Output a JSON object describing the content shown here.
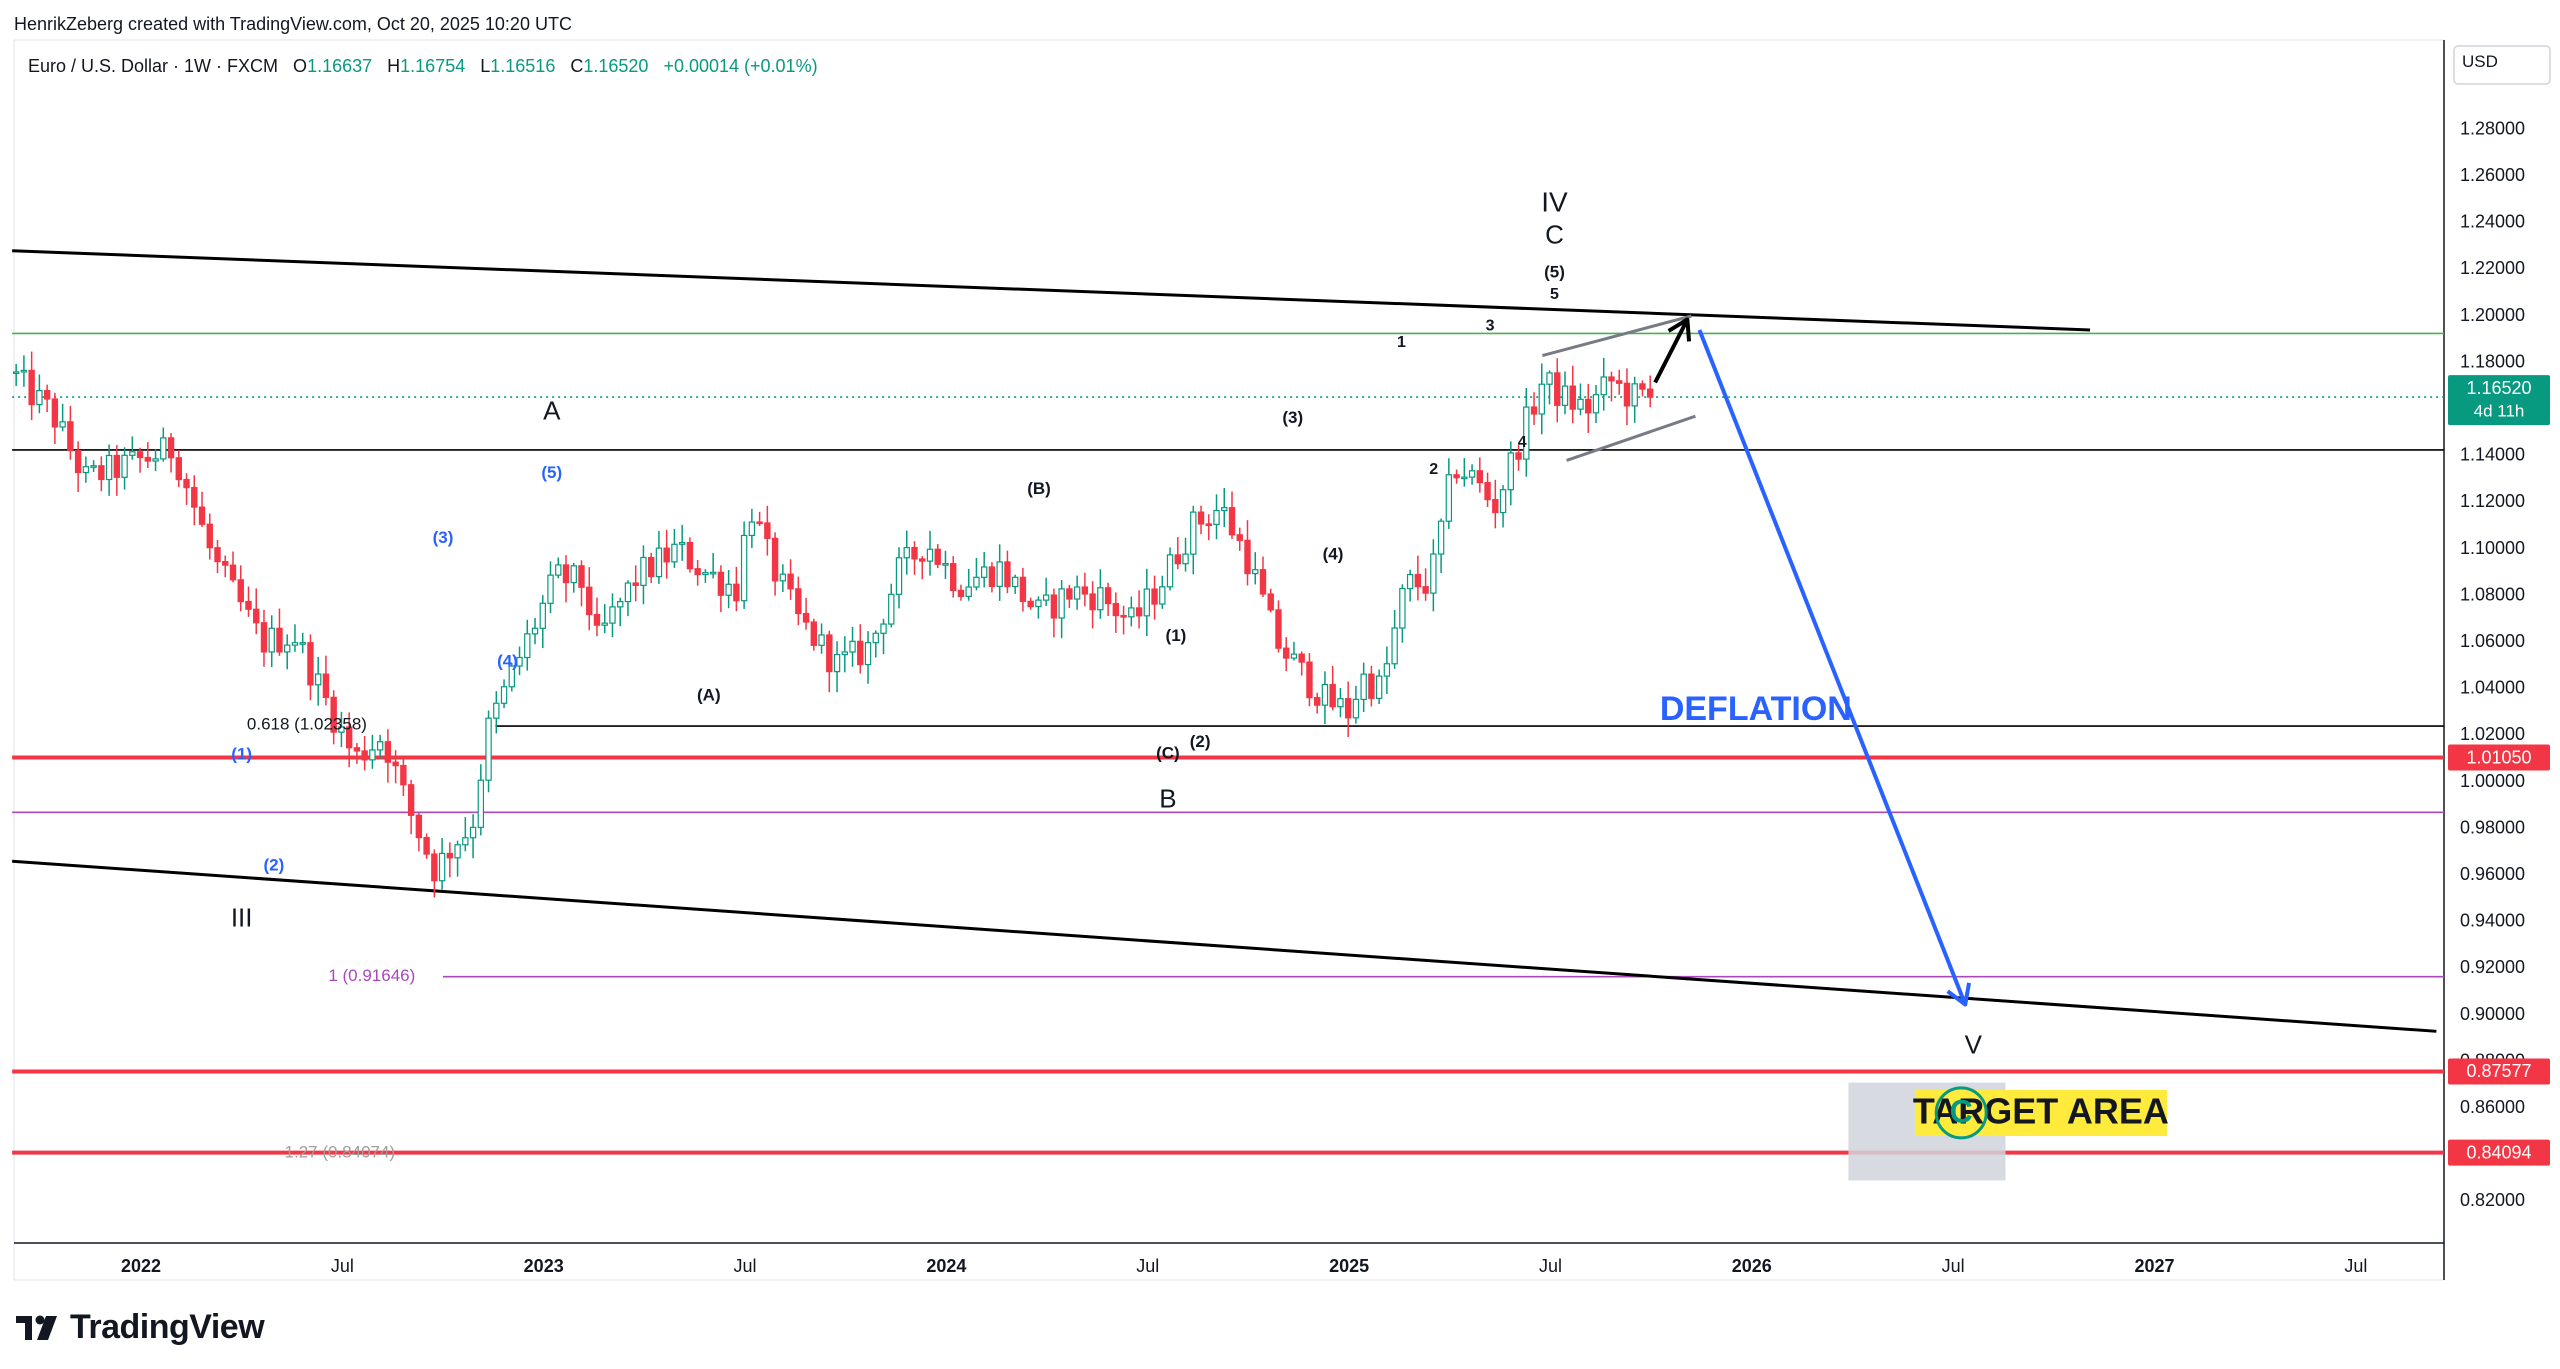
{
  "header": {
    "credit": "HenrikZeberg created with TradingView.com, Oct 20, 2025 10:20 UTC"
  },
  "legend": {
    "symbol": "Euro / U.S. Dollar · 1W · FXCM",
    "o_label": "O",
    "o": "1.16637",
    "h_label": "H",
    "h": "1.16754",
    "l_label": "L",
    "l": "1.16516",
    "c_label": "C",
    "c": "1.16520",
    "change": "+0.00014 (+0.01%)"
  },
  "price_axis": {
    "currency": "USD",
    "ticks": [
      "1.28000",
      "1.26000",
      "1.24000",
      "1.22000",
      "1.20000",
      "1.18000",
      "1.16000",
      "1.14000",
      "1.12000",
      "1.10000",
      "1.08000",
      "1.06000",
      "1.04000",
      "1.02000",
      "1.00000",
      "0.98000",
      "0.96000",
      "0.94000",
      "0.92000",
      "0.90000",
      "0.88000",
      "0.86000",
      "0.84000",
      "0.82000"
    ],
    "tick_values": [
      1.28,
      1.26,
      1.24,
      1.22,
      1.2,
      1.18,
      1.16,
      1.14,
      1.12,
      1.1,
      1.08,
      1.06,
      1.04,
      1.02,
      1.0,
      0.98,
      0.96,
      0.94,
      0.92,
      0.9,
      0.88,
      0.86,
      0.84,
      0.82
    ],
    "current_price_label": "1.16520",
    "countdown_label": "4d 11h",
    "badges": [
      {
        "label": "1.01050",
        "value": 1.0105
      },
      {
        "label": "0.87577",
        "value": 0.87577
      },
      {
        "label": "0.84094",
        "value": 0.84094
      }
    ]
  },
  "time_axis": {
    "labels": [
      {
        "text": "2022",
        "t": 2022.0,
        "bold": true
      },
      {
        "text": "Jul",
        "t": 2022.5,
        "bold": false
      },
      {
        "text": "2023",
        "t": 2023.0,
        "bold": true
      },
      {
        "text": "Jul",
        "t": 2023.5,
        "bold": false
      },
      {
        "text": "2024",
        "t": 2024.0,
        "bold": true
      },
      {
        "text": "Jul",
        "t": 2024.5,
        "bold": false
      },
      {
        "text": "2025",
        "t": 2025.0,
        "bold": true
      },
      {
        "text": "Jul",
        "t": 2025.5,
        "bold": false
      },
      {
        "text": "2026",
        "t": 2026.0,
        "bold": true
      },
      {
        "text": "Jul",
        "t": 2026.5,
        "bold": false
      },
      {
        "text": "2027",
        "t": 2027.0,
        "bold": true
      },
      {
        "text": "Jul",
        "t": 2027.5,
        "bold": false
      }
    ]
  },
  "chart_data": {
    "type": "candlestick",
    "symbol": "EURUSD",
    "interval": "1W",
    "x_range": [
      2021.68,
      2027.7
    ],
    "y_range": [
      0.805,
      1.305
    ],
    "up_color": "#089981",
    "down_color": "#f23645",
    "key_points": [
      {
        "t": 2021.69,
        "v": 1.176
      },
      {
        "t": 2021.8,
        "v": 1.158
      },
      {
        "t": 2021.88,
        "v": 1.13
      },
      {
        "t": 2022.0,
        "v": 1.137
      },
      {
        "t": 2022.1,
        "v": 1.143
      },
      {
        "t": 2022.2,
        "v": 1.095
      },
      {
        "t": 2022.32,
        "v": 1.06
      },
      {
        "t": 2022.4,
        "v": 1.063
      },
      {
        "t": 2022.45,
        "v": 1.045
      },
      {
        "t": 2022.55,
        "v": 1.01
      },
      {
        "t": 2022.62,
        "v": 1.02
      },
      {
        "t": 2022.68,
        "v": 0.99
      },
      {
        "t": 2022.75,
        "v": 0.962
      },
      {
        "t": 2022.8,
        "v": 0.975
      },
      {
        "t": 2022.84,
        "v": 0.98
      },
      {
        "t": 2022.88,
        "v": 1.022
      },
      {
        "t": 2022.95,
        "v": 1.05
      },
      {
        "t": 2023.05,
        "v": 1.088
      },
      {
        "t": 2023.12,
        "v": 1.085
      },
      {
        "t": 2023.15,
        "v": 1.06
      },
      {
        "t": 2023.25,
        "v": 1.088
      },
      {
        "t": 2023.35,
        "v": 1.1
      },
      {
        "t": 2023.42,
        "v": 1.09
      },
      {
        "t": 2023.5,
        "v": 1.083
      },
      {
        "t": 2023.53,
        "v": 1.12
      },
      {
        "t": 2023.58,
        "v": 1.095
      },
      {
        "t": 2023.65,
        "v": 1.07
      },
      {
        "t": 2023.75,
        "v": 1.05
      },
      {
        "t": 2023.83,
        "v": 1.058
      },
      {
        "t": 2023.9,
        "v": 1.09
      },
      {
        "t": 2023.97,
        "v": 1.103
      },
      {
        "t": 2024.05,
        "v": 1.085
      },
      {
        "t": 2024.15,
        "v": 1.092
      },
      {
        "t": 2024.25,
        "v": 1.072
      },
      {
        "t": 2024.33,
        "v": 1.082
      },
      {
        "t": 2024.4,
        "v": 1.08
      },
      {
        "t": 2024.48,
        "v": 1.068
      },
      {
        "t": 2024.55,
        "v": 1.085
      },
      {
        "t": 2024.63,
        "v": 1.11
      },
      {
        "t": 2024.7,
        "v": 1.118
      },
      {
        "t": 2024.77,
        "v": 1.095
      },
      {
        "t": 2024.84,
        "v": 1.06
      },
      {
        "t": 2024.9,
        "v": 1.047
      },
      {
        "t": 2024.96,
        "v": 1.035
      },
      {
        "t": 2025.02,
        "v": 1.03
      },
      {
        "t": 2025.05,
        "v": 1.045
      },
      {
        "t": 2025.1,
        "v": 1.04
      },
      {
        "t": 2025.16,
        "v": 1.085
      },
      {
        "t": 2025.22,
        "v": 1.085
      },
      {
        "t": 2025.28,
        "v": 1.136
      },
      {
        "t": 2025.33,
        "v": 1.13
      },
      {
        "t": 2025.38,
        "v": 1.118
      },
      {
        "t": 2025.45,
        "v": 1.15
      },
      {
        "t": 2025.5,
        "v": 1.172
      },
      {
        "t": 2025.55,
        "v": 1.165
      },
      {
        "t": 2025.61,
        "v": 1.16
      },
      {
        "t": 2025.67,
        "v": 1.172
      },
      {
        "t": 2025.72,
        "v": 1.165
      },
      {
        "t": 2025.76,
        "v": 1.1652
      }
    ],
    "trendlines": [
      {
        "name": "upper-channel",
        "color": "#000000",
        "from": {
          "t": 2021.68,
          "v": 1.228
        },
        "to": {
          "t": 2026.84,
          "v": 1.194
        }
      },
      {
        "name": "lower-channel",
        "color": "#000000",
        "from": {
          "t": 2021.68,
          "v": 0.966
        },
        "to": {
          "t": 2027.7,
          "v": 0.893
        }
      },
      {
        "name": "wedge-upper",
        "color": "#787b86",
        "from": {
          "t": 2025.48,
          "v": 1.183
        },
        "to": {
          "t": 2025.85,
          "v": 1.2
        }
      },
      {
        "name": "wedge-lower",
        "color": "#787b86",
        "from": {
          "t": 2025.54,
          "v": 1.138
        },
        "to": {
          "t": 2025.86,
          "v": 1.157
        }
      }
    ],
    "horizontal_lines": [
      {
        "value": 1.1925,
        "color": "#4caf50",
        "from_t": 2021.68
      },
      {
        "value": 1.1652,
        "color": "#089981",
        "from_t": 2021.68,
        "dotted": true
      },
      {
        "value": 1.1425,
        "color": "#000000",
        "from_t": 2021.68
      },
      {
        "value": 1.024,
        "color": "#000000",
        "from_t": 2022.88
      },
      {
        "value": 1.0105,
        "color": "#f23645",
        "from_t": 2021.68
      },
      {
        "value": 0.987,
        "color": "#ab47bc",
        "from_t": 2021.68
      },
      {
        "value": 0.91646,
        "color": "#ab47bc",
        "from_t": 2022.75
      },
      {
        "value": 0.87577,
        "color": "#f23645",
        "from_t": 2021.68
      },
      {
        "value": 0.84094,
        "color": "#f23645",
        "from_t": 2021.68
      }
    ],
    "fib_labels": [
      {
        "text": "0.618 (1.02358)",
        "t": 2022.35,
        "v": 1.0245,
        "color": "#131722"
      },
      {
        "text": "1 (0.91646)",
        "t": 2022.47,
        "v": 0.9165,
        "color": "#ab47bc"
      },
      {
        "text": "1.27 (0.84074)",
        "t": 2022.42,
        "v": 0.8408,
        "color": "#9e9e9e"
      }
    ],
    "wave_labels": [
      {
        "text": "A",
        "t": 2023.02,
        "v": 1.1585,
        "size": 26,
        "bold": false,
        "color": "#131722"
      },
      {
        "text": "(5)",
        "t": 2023.02,
        "v": 1.1325,
        "size": 17,
        "bold": true,
        "color": "#2962ff"
      },
      {
        "text": "(3)",
        "t": 2022.75,
        "v": 1.1045,
        "size": 17,
        "bold": true,
        "color": "#2962ff"
      },
      {
        "text": "(4)",
        "t": 2022.91,
        "v": 1.0515,
        "size": 17,
        "bold": true,
        "color": "#2962ff"
      },
      {
        "text": "(1)",
        "t": 2022.25,
        "v": 1.0115,
        "size": 17,
        "bold": true,
        "color": "#2962ff"
      },
      {
        "text": "(2)",
        "t": 2022.33,
        "v": 0.964,
        "size": 17,
        "bold": true,
        "color": "#2962ff"
      },
      {
        "text": "III",
        "t": 2022.25,
        "v": 0.941,
        "size": 26,
        "bold": false,
        "color": "#131722"
      },
      {
        "text": "(A)",
        "t": 2023.41,
        "v": 1.037,
        "size": 17,
        "bold": true,
        "color": "#131722"
      },
      {
        "text": "(B)",
        "t": 2024.23,
        "v": 1.1255,
        "size": 17,
        "bold": true,
        "color": "#131722"
      },
      {
        "text": "(1)",
        "t": 2024.57,
        "v": 1.0625,
        "size": 17,
        "bold": true,
        "color": "#131722"
      },
      {
        "text": "(C)",
        "t": 2024.55,
        "v": 1.012,
        "size": 17,
        "bold": true,
        "color": "#131722"
      },
      {
        "text": "(2)",
        "t": 2024.63,
        "v": 1.017,
        "size": 17,
        "bold": true,
        "color": "#131722"
      },
      {
        "text": "B",
        "t": 2024.55,
        "v": 0.992,
        "size": 26,
        "bold": false,
        "color": "#131722"
      },
      {
        "text": "(3)",
        "t": 2024.86,
        "v": 1.156,
        "size": 17,
        "bold": true,
        "color": "#131722"
      },
      {
        "text": "(4)",
        "t": 2024.96,
        "v": 1.0975,
        "size": 17,
        "bold": true,
        "color": "#131722"
      },
      {
        "text": "1",
        "t": 2025.13,
        "v": 1.1885,
        "size": 16,
        "bold": true,
        "color": "#131722"
      },
      {
        "text": "2",
        "t": 2025.21,
        "v": 1.134,
        "size": 16,
        "bold": true,
        "color": "#131722"
      },
      {
        "text": "3",
        "t": 2025.35,
        "v": 1.1955,
        "size": 16,
        "bold": true,
        "color": "#131722"
      },
      {
        "text": "4",
        "t": 2025.43,
        "v": 1.1455,
        "size": 16,
        "bold": true,
        "color": "#131722"
      },
      {
        "text": "5",
        "t": 2025.51,
        "v": 1.209,
        "size": 16,
        "bold": true,
        "color": "#131722"
      },
      {
        "text": "(5)",
        "t": 2025.51,
        "v": 1.2185,
        "size": 17,
        "bold": true,
        "color": "#131722"
      },
      {
        "text": "C",
        "t": 2025.51,
        "v": 1.234,
        "size": 26,
        "bold": false,
        "color": "#131722"
      },
      {
        "text": "IV",
        "t": 2025.51,
        "v": 1.248,
        "size": 28,
        "bold": false,
        "color": "#131722"
      },
      {
        "text": "V",
        "t": 2026.55,
        "v": 0.8865,
        "size": 26,
        "bold": false,
        "color": "#131722"
      }
    ],
    "annotations": {
      "deflation": {
        "text": "DEFLATION",
        "t": 2026.01,
        "v": 1.0305,
        "color": "#2962ff"
      },
      "target_area": {
        "text": "TARGET AREA",
        "t": 2026.42,
        "v": 0.8575,
        "bg": "#ffeb3b",
        "color": "#131722"
      },
      "target_box": {
        "t0": 2026.24,
        "t1": 2026.63,
        "v0": 0.871,
        "v1": 0.829,
        "color": "#d1d4dc"
      },
      "c_circle": {
        "text": "C",
        "t": 2026.52,
        "v": 0.858,
        "color": "#089981"
      }
    },
    "arrows": [
      {
        "name": "up-arrow",
        "color": "#000000",
        "from": {
          "t": 2025.76,
          "v": 1.1715
        },
        "to": {
          "t": 2025.84,
          "v": 1.1985
        }
      },
      {
        "name": "down-arrow",
        "color": "#2962ff",
        "from": {
          "t": 2025.87,
          "v": 1.194
        },
        "to": {
          "t": 2026.53,
          "v": 0.9045
        }
      }
    ]
  }
}
